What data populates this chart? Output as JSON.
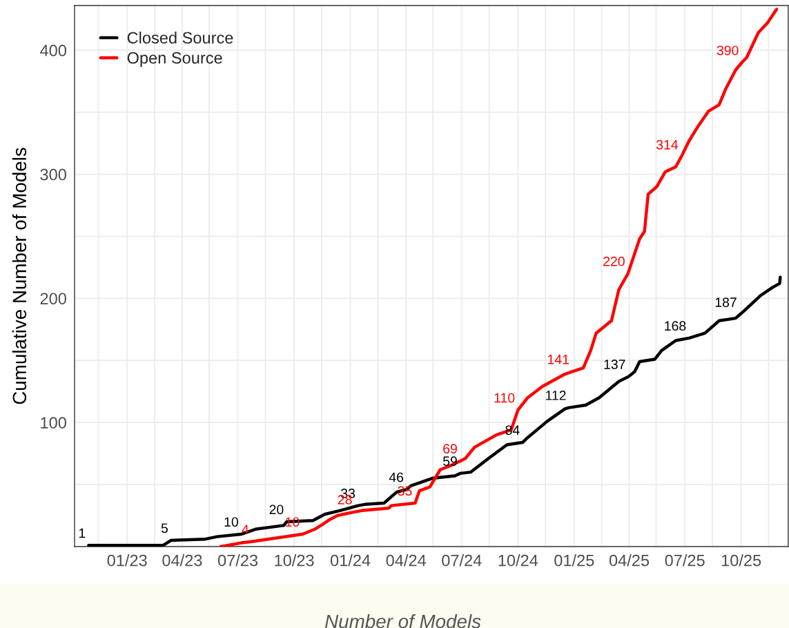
{
  "chart_data": {
    "type": "line",
    "xlabel": "Number of Models",
    "ylabel": "Cumulative Number of Models",
    "series": [
      {
        "name": "Closed Source",
        "color": "#000000",
        "x": [
          "2022-10-30",
          "2023-03-01",
          "2023-03-14",
          "2023-05-09",
          "2023-05-28",
          "2023-07-07",
          "2023-07-30",
          "2023-09-14",
          "2023-09-19",
          "2023-11-01",
          "2023-11-20",
          "2023-12-15",
          "2024-01-14",
          "2024-01-25",
          "2024-02-25",
          "2024-03-17",
          "2024-04-02",
          "2024-04-09",
          "2024-05-14",
          "2024-06-20",
          "2024-06-29",
          "2024-07-16",
          "2024-08-14",
          "2024-09-13",
          "2024-10-09",
          "2024-10-15",
          "2024-11-18",
          "2024-12-17",
          "2024-12-24",
          "2025-01-20",
          "2025-02-11",
          "2025-03-15",
          "2025-03-31",
          "2025-04-10",
          "2025-04-18",
          "2025-05-13",
          "2025-05-24",
          "2025-06-16",
          "2025-07-08",
          "2025-08-03",
          "2025-08-26",
          "2025-09-22",
          "2025-09-29",
          "2025-10-06",
          "2025-11-01",
          "2025-11-22",
          "2025-12-03",
          "2025-12-04"
        ],
        "values": [
          1,
          1,
          5,
          6,
          8,
          10,
          14,
          17,
          20,
          21,
          26,
          29,
          33,
          34,
          35,
          44,
          46,
          49,
          55,
          57,
          59,
          60,
          71,
          82,
          84,
          87,
          101,
          111,
          112,
          114,
          120,
          133,
          137,
          141,
          149,
          151,
          158,
          166,
          168,
          172,
          182,
          184,
          187,
          190,
          202,
          209,
          212,
          217
        ],
        "value_labels": [
          "1",
          null,
          "5",
          null,
          null,
          "10",
          null,
          null,
          "20",
          null,
          null,
          null,
          "33",
          null,
          null,
          null,
          "46",
          null,
          null,
          null,
          "59",
          null,
          null,
          null,
          "84",
          null,
          null,
          null,
          "112",
          null,
          null,
          null,
          "137",
          null,
          null,
          null,
          null,
          null,
          "168",
          null,
          null,
          null,
          "187",
          null,
          null,
          null,
          null,
          null
        ]
      },
      {
        "name": "Open Source",
        "color": "#ff0000",
        "x": [
          "2023-06-03",
          "2023-07-07",
          "2023-07-24",
          "2023-10-15",
          "2023-11-04",
          "2023-11-17",
          "2023-11-29",
          "2023-12-11",
          "2024-01-09",
          "2024-01-20",
          "2024-03-04",
          "2024-03-08",
          "2024-04-16",
          "2024-04-23",
          "2024-05-10",
          "2024-05-27",
          "2024-06-12",
          "2024-06-29",
          "2024-07-07",
          "2024-07-22",
          "2024-08-27",
          "2024-09-20",
          "2024-10-01",
          "2024-10-17",
          "2024-11-10",
          "2024-12-17",
          "2024-12-29",
          "2025-01-16",
          "2025-01-28",
          "2025-02-06",
          "2025-03-03",
          "2025-03-15",
          "2025-03-30",
          "2025-04-18",
          "2025-04-26",
          "2025-05-02",
          "2025-05-16",
          "2025-05-30",
          "2025-06-16",
          "2025-06-25",
          "2025-07-08",
          "2025-07-23",
          "2025-08-09",
          "2025-08-26",
          "2025-09-06",
          "2025-09-22",
          "2025-10-02",
          "2025-10-10",
          "2025-10-29",
          "2025-11-13",
          "2025-11-28"
        ],
        "values": [
          0,
          3,
          4,
          10,
          14,
          18,
          22,
          25,
          28,
          29,
          31,
          33,
          35,
          45,
          48,
          62,
          65,
          69,
          71,
          80,
          90,
          94,
          110,
          120,
          129,
          139,
          141,
          144,
          158,
          172,
          182,
          207,
          220,
          248,
          254,
          284,
          290,
          302,
          306,
          314,
          327,
          339,
          351,
          356,
          369,
          384,
          390,
          394,
          414,
          422,
          433
        ],
        "value_labels": [
          null,
          null,
          "4",
          "10",
          null,
          null,
          null,
          null,
          "28",
          null,
          null,
          null,
          "35",
          null,
          null,
          null,
          null,
          "69",
          null,
          null,
          null,
          null,
          "110",
          null,
          null,
          null,
          "141",
          null,
          null,
          null,
          null,
          null,
          "220",
          null,
          null,
          null,
          null,
          null,
          null,
          "314",
          null,
          null,
          null,
          null,
          null,
          null,
          "390",
          null,
          null,
          null,
          null
        ]
      }
    ],
    "xlim": [
      "2022-10-07",
      "2025-12-17"
    ],
    "xticks": [
      {
        "value": "2022-11-15",
        "label": null
      },
      {
        "value": "2023-01-01",
        "label": "01/23"
      },
      {
        "value": "2023-02-15",
        "label": null
      },
      {
        "value": "2023-04-01",
        "label": "04/23"
      },
      {
        "value": "2023-05-15",
        "label": null
      },
      {
        "value": "2023-07-01",
        "label": "07/23"
      },
      {
        "value": "2023-08-15",
        "label": null
      },
      {
        "value": "2023-10-01",
        "label": "10/23"
      },
      {
        "value": "2023-11-15",
        "label": null
      },
      {
        "value": "2024-01-01",
        "label": "01/24"
      },
      {
        "value": "2024-02-15",
        "label": null
      },
      {
        "value": "2024-04-01",
        "label": "04/24"
      },
      {
        "value": "2024-05-15",
        "label": null
      },
      {
        "value": "2024-07-01",
        "label": "07/24"
      },
      {
        "value": "2024-08-15",
        "label": null
      },
      {
        "value": "2024-10-01",
        "label": "10/24"
      },
      {
        "value": "2024-11-15",
        "label": null
      },
      {
        "value": "2025-01-01",
        "label": "01/25"
      },
      {
        "value": "2025-02-15",
        "label": null
      },
      {
        "value": "2025-04-01",
        "label": "04/25"
      },
      {
        "value": "2025-05-15",
        "label": null
      },
      {
        "value": "2025-07-01",
        "label": "07/25"
      },
      {
        "value": "2025-08-15",
        "label": null
      },
      {
        "value": "2025-10-01",
        "label": "10/25"
      },
      {
        "value": "2025-11-15",
        "label": null
      }
    ],
    "ylim": [
      0,
      436
    ],
    "yticks": [
      {
        "value": 50,
        "label": null
      },
      100,
      {
        "value": 150,
        "label": null
      },
      200,
      {
        "value": 250,
        "label": null
      },
      300,
      {
        "value": 350,
        "label": null
      },
      400
    ],
    "grid": true,
    "legend": "top left",
    "line_style": "solid",
    "marker": "none"
  }
}
